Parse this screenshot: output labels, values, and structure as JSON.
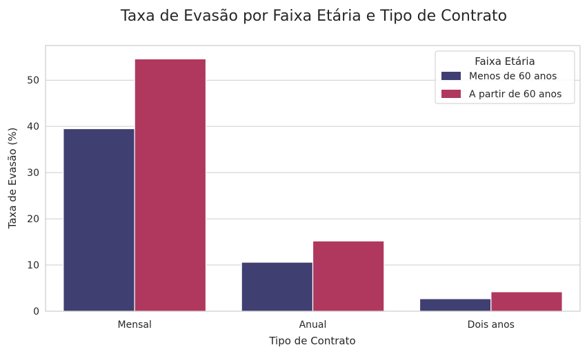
{
  "chart_data": {
    "type": "bar",
    "title": "Taxa de Evasão por Faixa Etária e Tipo de Contrato",
    "xlabel": "Tipo de Contrato",
    "ylabel": "Taxa de Evasão (%)",
    "categories": [
      "Mensal",
      "Anual",
      "Dois anos"
    ],
    "series": [
      {
        "name": "Menos de 60 anos",
        "values": [
          39.5,
          10.6,
          2.7
        ],
        "color": "#3f3f72"
      },
      {
        "name": "A partir de 60 anos",
        "values": [
          54.6,
          15.2,
          4.2
        ],
        "color": "#b0385e"
      }
    ],
    "ylim": [
      0,
      57.5
    ],
    "yticks": [
      0,
      10,
      20,
      30,
      40,
      50
    ],
    "grid": true,
    "legend": {
      "title": "Faixa Etária",
      "placement": "top-right"
    }
  }
}
